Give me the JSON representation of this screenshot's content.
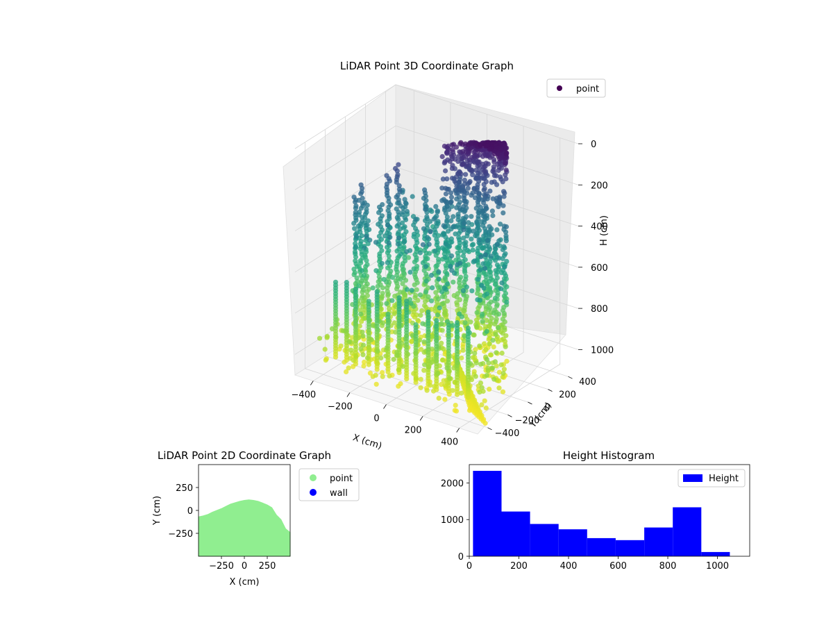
{
  "chart_data": [
    {
      "type": "scatter3d",
      "title": "LiDAR Point 3D Coordinate Graph",
      "xlabel": "X (cm)",
      "ylabel": "Y (cm)",
      "zlabel": "H (cm)",
      "x_ticks": [
        "−400",
        "−200",
        "0",
        "200",
        "400"
      ],
      "y_ticks": [
        "400",
        "200",
        "0",
        "−200",
        "−400"
      ],
      "z_ticks": [
        "0",
        "200",
        "400",
        "600",
        "800",
        "1000"
      ],
      "xlim": [
        -500,
        500
      ],
      "ylim": [
        -500,
        500
      ],
      "zlim": [
        0,
        1100
      ],
      "z_inverted": true,
      "colormap": "viridis",
      "legend": [
        {
          "name": "point",
          "color": "#440154"
        }
      ],
      "legend_position": "upper-right",
      "grid": true,
      "point_count_estimate": 8000
    },
    {
      "type": "scatter",
      "title": "LiDAR Point 2D Coordinate Graph",
      "xlabel": "X (cm)",
      "ylabel": "Y (cm)",
      "x_ticks": [
        "−250",
        "0",
        "250"
      ],
      "y_ticks": [
        "250",
        "0",
        "−250"
      ],
      "xlim": [
        -500,
        500
      ],
      "ylim": [
        -500,
        500
      ],
      "series": [
        {
          "name": "point",
          "color": "#90ee90",
          "outline_x": [
            -500,
            -450,
            -400,
            -350,
            -300,
            -250,
            -200,
            -150,
            -100,
            -50,
            0,
            50,
            100,
            150,
            200,
            250,
            300,
            350,
            400,
            450,
            500
          ],
          "outline_y": [
            -70,
            -60,
            -45,
            -20,
            0,
            20,
            45,
            70,
            85,
            100,
            110,
            115,
            110,
            100,
            80,
            60,
            30,
            -50,
            -100,
            -200,
            -240
          ]
        },
        {
          "name": "wall",
          "color": "#0000ff"
        }
      ],
      "legend_position": "outside-right"
    },
    {
      "type": "bar",
      "title": "Height Histogram",
      "x_ticks": [
        "0",
        "200",
        "400",
        "600",
        "800",
        "1000"
      ],
      "y_ticks": [
        "0",
        "1000",
        "2000"
      ],
      "xlim": [
        0,
        1130
      ],
      "ylim": [
        0,
        2500
      ],
      "bins": [
        {
          "x0": 15,
          "x1": 130,
          "count": 2330
        },
        {
          "x0": 130,
          "x1": 245,
          "count": 1220
        },
        {
          "x0": 245,
          "x1": 360,
          "count": 880
        },
        {
          "x0": 360,
          "x1": 475,
          "count": 735
        },
        {
          "x0": 475,
          "x1": 590,
          "count": 495
        },
        {
          "x0": 590,
          "x1": 705,
          "count": 440
        },
        {
          "x0": 705,
          "x1": 820,
          "count": 785
        },
        {
          "x0": 820,
          "x1": 935,
          "count": 1335
        },
        {
          "x0": 935,
          "x1": 1050,
          "count": 115
        }
      ],
      "series": [
        {
          "name": "Height",
          "color": "#0000ff"
        }
      ],
      "legend_position": "upper-right"
    }
  ]
}
